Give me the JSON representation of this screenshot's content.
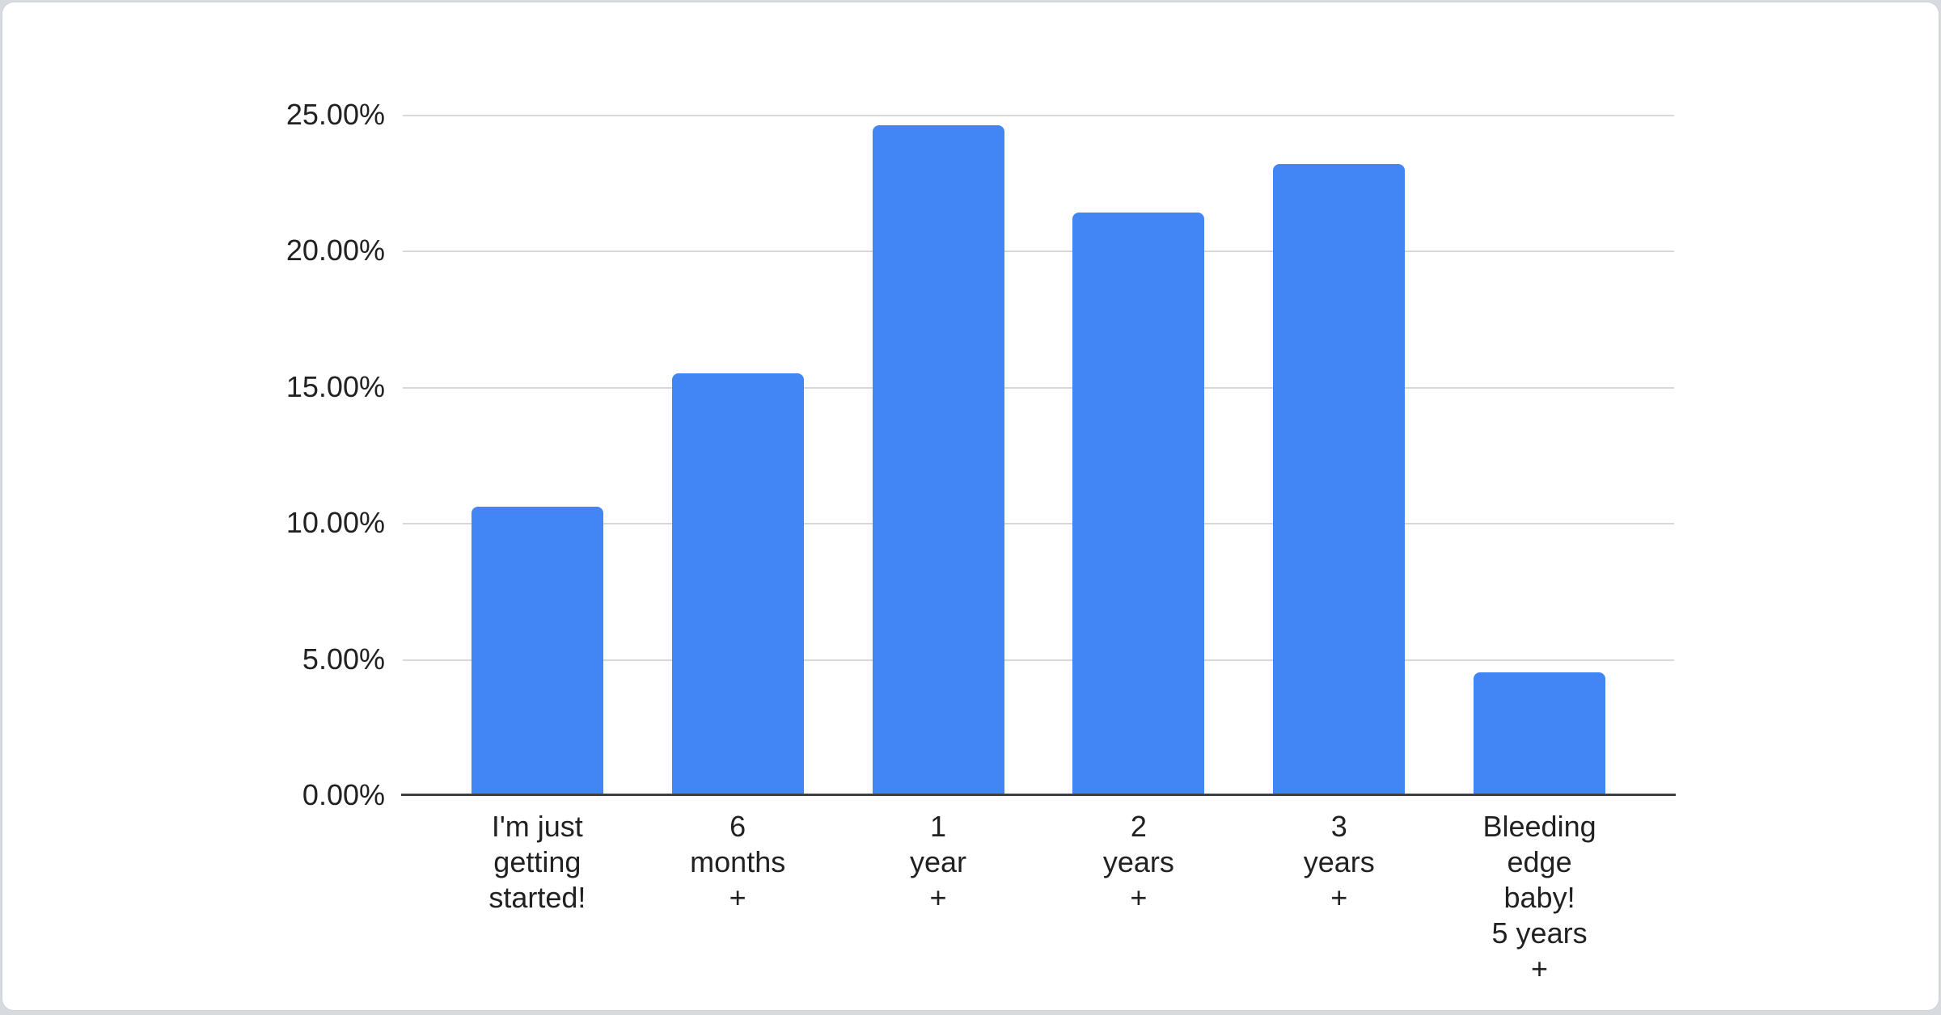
{
  "colors": {
    "bar": "#4285f4",
    "gridline": "#d8d8d8",
    "axis_line": "#3c4043",
    "label_text": "#212121",
    "page_background": "#d7dade",
    "card_background": "#ffffff"
  },
  "chart_data": {
    "type": "bar",
    "title": "",
    "xlabel": "",
    "ylabel": "",
    "categories": [
      "I'm just\ngetting\nstarted!",
      "6 months +",
      "1 year +",
      "2 years +",
      "3 years +",
      "Bleeding\nedge baby!\n5 years +"
    ],
    "values": [
      10.6,
      15.5,
      24.6,
      21.4,
      23.2,
      4.5
    ],
    "value_unit": "percent",
    "ylim": [
      0,
      25
    ],
    "yticks": [
      0,
      5,
      10,
      15,
      20,
      25
    ],
    "ytick_labels": [
      "0.00%",
      "5.00%",
      "10.00%",
      "15.00%",
      "20.00%",
      "25.00%"
    ],
    "grid": true,
    "legend": "none",
    "bar_color": "#4285f4"
  }
}
